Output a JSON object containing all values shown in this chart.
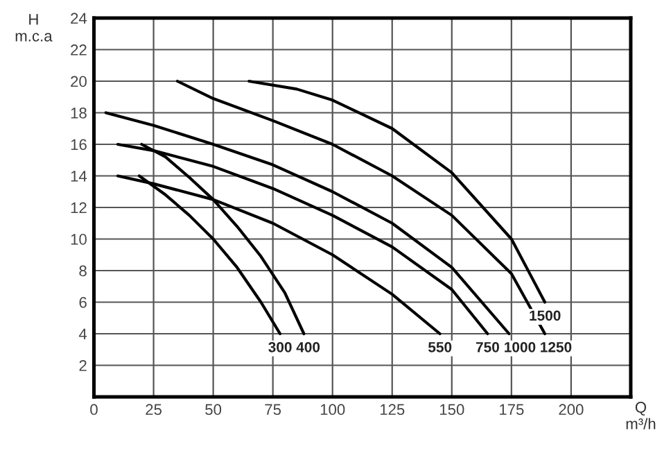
{
  "chart_data": {
    "type": "line",
    "xlabel": "Q\nm³/h",
    "ylabel": "H\nm.c.a",
    "xlim": [
      0,
      225
    ],
    "xticks": [
      0,
      25,
      50,
      75,
      100,
      125,
      150,
      175,
      200
    ],
    "ylim": [
      0,
      24
    ],
    "yticks": [
      2,
      4,
      6,
      8,
      10,
      12,
      14,
      16,
      18,
      20,
      22,
      24
    ],
    "grid": true,
    "legend": false,
    "marker": "none",
    "line_style": "solid",
    "series": [
      {
        "name": "300",
        "color": "#000000",
        "x": [
          19,
          30,
          40,
          50,
          60,
          70,
          78
        ],
        "values": [
          14,
          12.8,
          11.5,
          10,
          8.2,
          6,
          4
        ]
      },
      {
        "name": "400",
        "color": "#000000",
        "x": [
          20,
          30,
          40,
          50,
          60,
          70,
          80,
          88
        ],
        "values": [
          16,
          15.2,
          13.9,
          12.5,
          10.8,
          8.9,
          6.6,
          4
        ]
      },
      {
        "name": "550",
        "color": "#000000",
        "x": [
          10,
          25,
          50,
          75,
          100,
          125,
          145
        ],
        "values": [
          14,
          13.5,
          12.5,
          11,
          9,
          6.5,
          4
        ]
      },
      {
        "name": "750",
        "color": "#000000",
        "x": [
          10,
          25,
          50,
          75,
          100,
          125,
          150,
          165
        ],
        "values": [
          16,
          15.6,
          14.6,
          13.2,
          11.5,
          9.5,
          6.8,
          4
        ]
      },
      {
        "name": "1000",
        "color": "#000000",
        "x": [
          5,
          25,
          50,
          75,
          100,
          125,
          150,
          174
        ],
        "values": [
          18,
          17.2,
          16,
          14.7,
          13,
          11,
          8.2,
          4
        ]
      },
      {
        "name": "1250",
        "color": "#000000",
        "x": [
          35,
          50,
          75,
          100,
          125,
          150,
          175,
          189
        ],
        "values": [
          20,
          18.9,
          17.5,
          16,
          14,
          11.5,
          7.8,
          4
        ]
      },
      {
        "name": "1500",
        "color": "#000000",
        "x": [
          65,
          85,
          100,
          125,
          150,
          175,
          189
        ],
        "values": [
          20,
          19.5,
          18.8,
          17,
          14.2,
          10,
          6
        ]
      }
    ]
  }
}
